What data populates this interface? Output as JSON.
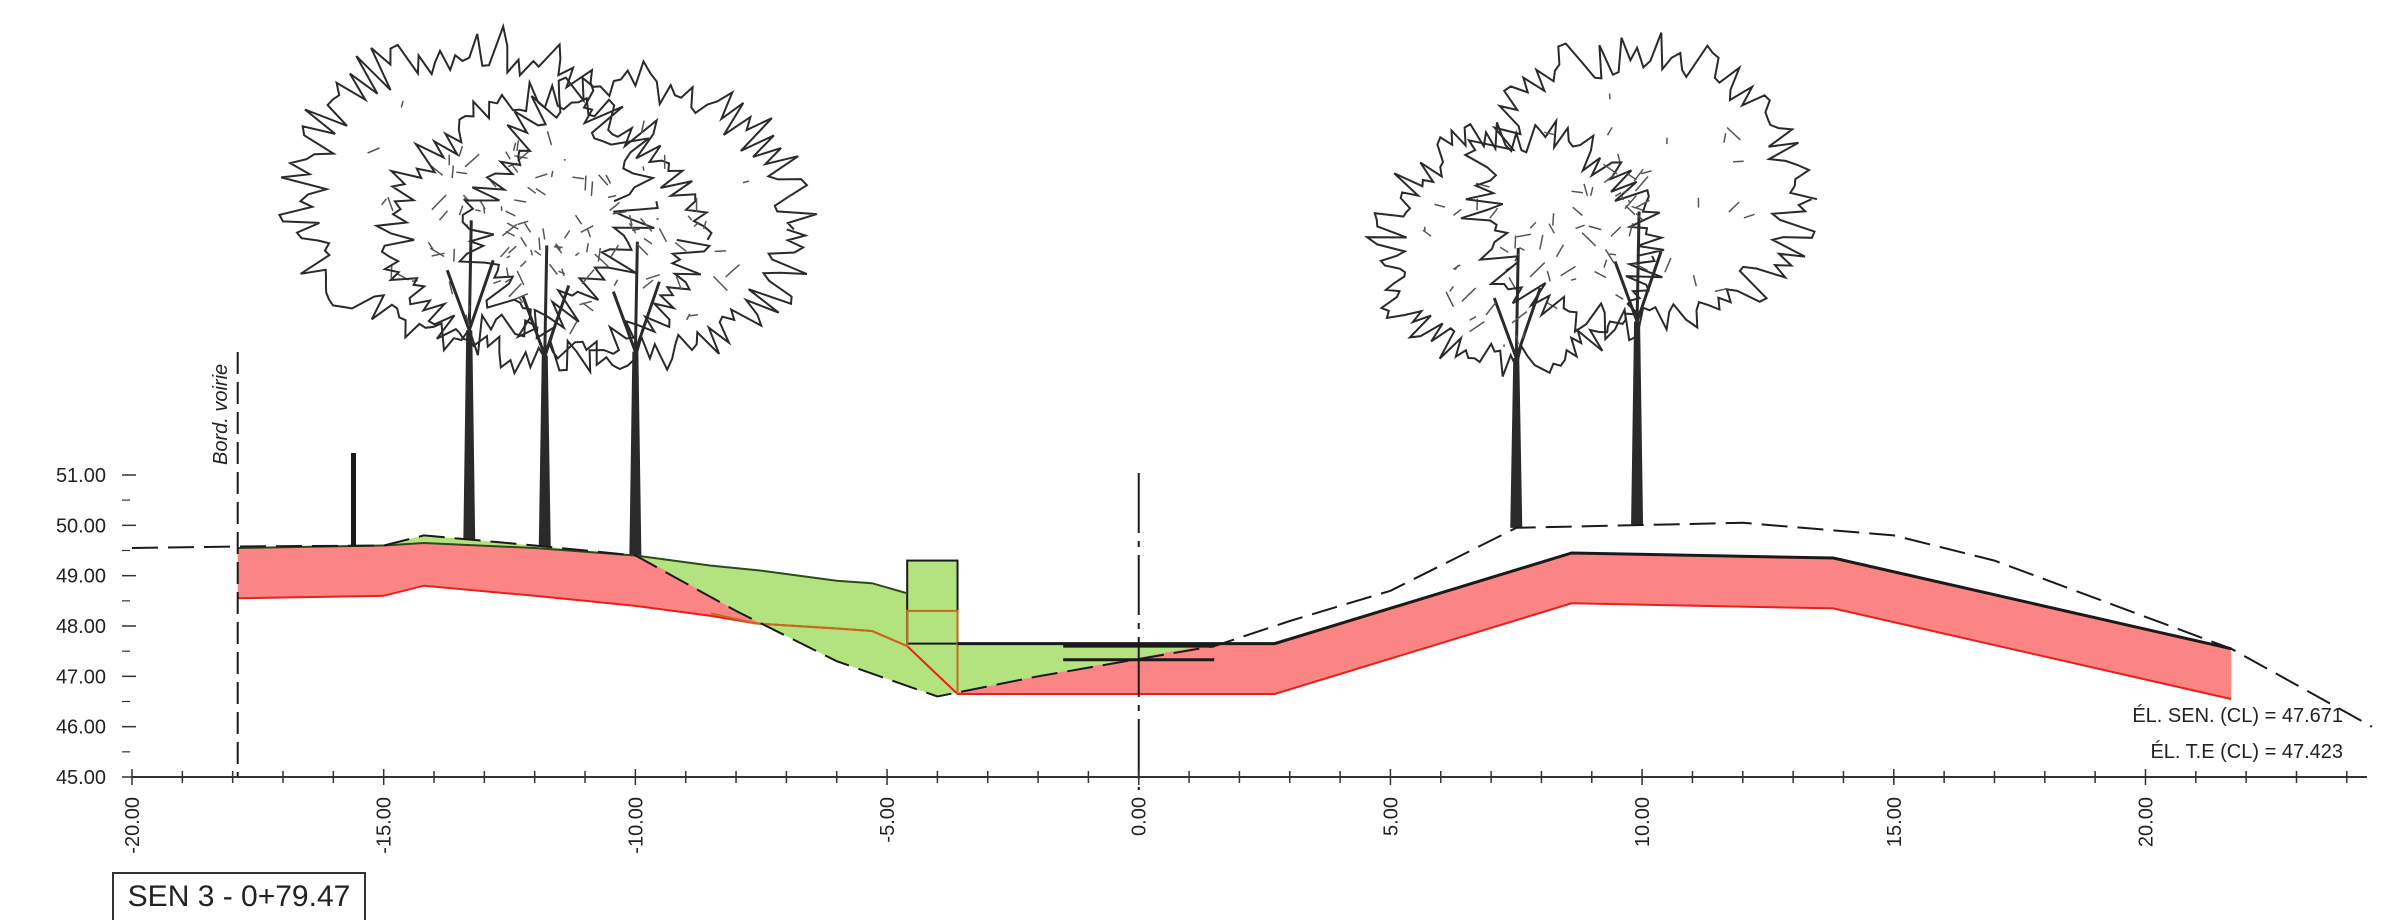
{
  "title": "SEN 3 - 0+79.47",
  "label_vertical": "Bord. voirie",
  "annotations": [
    "ÉL. SEN. (CL) = 47.671",
    "ÉL. T.E (CL) = 47.423"
  ],
  "colors": {
    "cut": "#f08080",
    "cut_fill": "#fb8484",
    "fill": "#b3e37e",
    "red_line": "#e8201c",
    "orange_line": "#c76a1a",
    "dark_line": "#1a1a1a",
    "tree": "#2a2a2a"
  },
  "chart_data": {
    "type": "cross-section",
    "x_ticks": [
      "-20.00",
      "-15.00",
      "-10.00",
      "-5.00",
      "0.00",
      "5.00",
      "10.00",
      "15.00",
      "20.00"
    ],
    "y_ticks": [
      "45.00",
      "46.00",
      "47.00",
      "48.00",
      "49.00",
      "50.00",
      "51.00"
    ],
    "xlim": [
      -20,
      24.5
    ],
    "ylim": [
      45,
      51
    ],
    "existing_ground": [
      [
        -20,
        49.55
      ],
      [
        -17.9,
        49.58
      ],
      [
        -15,
        49.6
      ],
      [
        -14.2,
        49.8
      ],
      [
        -12,
        49.6
      ],
      [
        -10,
        49.4
      ],
      [
        -8,
        48.3
      ],
      [
        -6,
        47.3
      ],
      [
        -4,
        46.6
      ],
      [
        -2,
        47.0
      ],
      [
        1.5,
        47.6
      ],
      [
        3,
        48.1
      ],
      [
        5,
        48.7
      ],
      [
        7.5,
        49.95
      ],
      [
        12,
        50.05
      ],
      [
        15,
        49.8
      ],
      [
        17,
        49.3
      ],
      [
        21.7,
        47.55
      ],
      [
        24.5,
        46.0
      ]
    ],
    "proposed_top": [
      [
        -17.9,
        49.55
      ],
      [
        -15,
        49.6
      ],
      [
        -14.2,
        49.65
      ],
      [
        -12,
        49.55
      ],
      [
        -10,
        49.4
      ],
      [
        -8.5,
        49.2
      ],
      [
        -7.5,
        49.1
      ],
      [
        -6,
        48.9
      ],
      [
        -5.3,
        48.85
      ],
      [
        -4.6,
        48.65
      ],
      [
        -3.6,
        47.65
      ],
      [
        2.7,
        47.65
      ],
      [
        8.6,
        49.45
      ],
      [
        13.8,
        49.35
      ],
      [
        21.7,
        47.55
      ]
    ],
    "cut_bottom": [
      [
        -17.9,
        48.55
      ],
      [
        -15,
        48.6
      ],
      [
        -14.2,
        48.8
      ],
      [
        -12,
        48.6
      ],
      [
        -10,
        48.4
      ],
      [
        -8.5,
        48.2
      ],
      [
        -7.6,
        48.05
      ],
      [
        -6,
        47.95
      ],
      [
        -5.3,
        47.9
      ],
      [
        -4.6,
        47.6
      ],
      [
        -3.6,
        46.65
      ],
      [
        2.7,
        46.65
      ],
      [
        8.6,
        48.45
      ],
      [
        13.8,
        48.35
      ],
      [
        21.7,
        46.55
      ]
    ],
    "left_edge_x": -17.9,
    "centerline_x": 0,
    "trees": [
      {
        "x": -13.3,
        "base": 49.6,
        "height": 9.5
      },
      {
        "x": -11.8,
        "base": 49.55,
        "height": 8.5
      },
      {
        "x": -10,
        "base": 49.4,
        "height": 9.0
      },
      {
        "x": 7.5,
        "base": 49.95,
        "height": 7.5
      },
      {
        "x": 9.9,
        "base": 50.0,
        "height": 9.0
      }
    ]
  }
}
